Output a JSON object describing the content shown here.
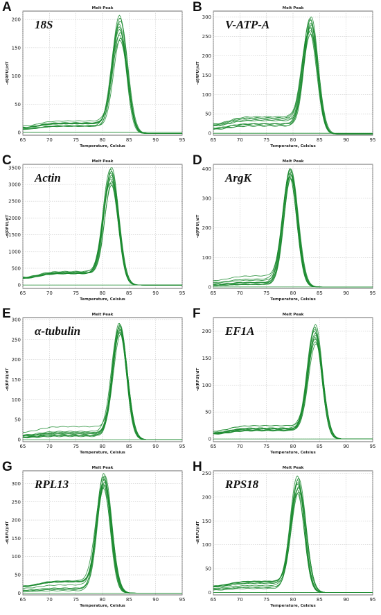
{
  "chart_data": [
    {
      "panel": "A",
      "gene": "18S",
      "type": "line",
      "title": "Melt Peak",
      "xlabel": "Temperature, Celsius",
      "ylabel": "-d(RFU)/dT",
      "xlim": [
        65,
        95
      ],
      "xticks": [
        65,
        70,
        75,
        80,
        85,
        90,
        95
      ],
      "ylim": [
        -5,
        215
      ],
      "yticks": [
        0,
        50,
        100,
        150,
        200
      ],
      "peak_temp": 83.3,
      "baseline": [
        10,
        24
      ],
      "peak_min": 163,
      "peak_max": 208,
      "end": -2,
      "curves": 10,
      "color": "#1a8a2e"
    },
    {
      "panel": "B",
      "gene": "V-ATP-A",
      "type": "line",
      "title": "Melt Peak",
      "xlabel": "Temperature, Celsius",
      "ylabel": "-d(RFU)/dT",
      "xlim": [
        65,
        95
      ],
      "xticks": [
        65,
        70,
        75,
        80,
        85,
        90,
        95
      ],
      "ylim": [
        -5,
        315
      ],
      "yticks": [
        0,
        50,
        100,
        150,
        200,
        250,
        300
      ],
      "peak_temp": 83.3,
      "baseline": [
        15,
        45
      ],
      "peak_min": 255,
      "peak_max": 300,
      "end": -2,
      "curves": 10,
      "color": "#1a8a2e"
    },
    {
      "panel": "C",
      "gene": "Actin",
      "type": "line",
      "title": "Melt Peak",
      "xlabel": "Temperature, Celsius",
      "ylabel": "-d(RFU)/dT",
      "xlim": [
        65,
        95
      ],
      "xticks": [
        65,
        70,
        75,
        80,
        85,
        90,
        95
      ],
      "ylim": [
        -100,
        3600
      ],
      "yticks": [
        0,
        500,
        1000,
        1500,
        2000,
        2500,
        3000,
        3500
      ],
      "peak_temp": 81.7,
      "baseline": [
        330,
        420
      ],
      "peak_min": 2950,
      "peak_max": 3480,
      "end": 0,
      "curves": 10,
      "color": "#1a8a2e"
    },
    {
      "panel": "D",
      "gene": "ArgK",
      "type": "line",
      "title": "Melt Peak",
      "xlabel": "Temperature, Celsius",
      "ylabel": "-d(RFU)/dT",
      "xlim": [
        65,
        95
      ],
      "xticks": [
        65,
        70,
        75,
        80,
        85,
        90,
        95
      ],
      "ylim": [
        -5,
        415
      ],
      "yticks": [
        0,
        100,
        200,
        300,
        400
      ],
      "peak_temp": 79.5,
      "baseline": [
        5,
        40
      ],
      "peak_min": 365,
      "peak_max": 400,
      "end": 0,
      "curves": 10,
      "color": "#1a8a2e"
    },
    {
      "panel": "E",
      "gene": "α-tubulin",
      "type": "line",
      "title": "Melt Peak",
      "xlabel": "Temperature, Celsius",
      "ylabel": "-d(RFU)/dT",
      "xlim": [
        65,
        95
      ],
      "xticks": [
        65,
        70,
        75,
        80,
        85,
        90,
        95
      ],
      "ylim": [
        -5,
        305
      ],
      "yticks": [
        0,
        50,
        100,
        150,
        200,
        250,
        300
      ],
      "peak_temp": 83.3,
      "baseline": [
        8,
        42
      ],
      "peak_min": 262,
      "peak_max": 290,
      "end": 0,
      "curves": 10,
      "color": "#1a8a2e"
    },
    {
      "panel": "F",
      "gene": "EF1A",
      "type": "line",
      "title": "Melt Peak",
      "xlabel": "Temperature, Celsius",
      "ylabel": "-d(RFU)/dT",
      "xlim": [
        65,
        95
      ],
      "xticks": [
        65,
        70,
        75,
        80,
        85,
        90,
        95
      ],
      "ylim": [
        -5,
        225
      ],
      "yticks": [
        0,
        50,
        100,
        150,
        200
      ],
      "peak_temp": 84.2,
      "baseline": [
        15,
        25
      ],
      "peak_min": 175,
      "peak_max": 210,
      "end": 0,
      "curves": 10,
      "color": "#1a8a2e"
    },
    {
      "panel": "G",
      "gene": "RPL13",
      "type": "line",
      "title": "Melt Peak",
      "xlabel": "Temperature, Celsius",
      "ylabel": "-d(RFU)/dT",
      "xlim": [
        65,
        95
      ],
      "xticks": [
        65,
        70,
        75,
        80,
        85,
        90,
        95
      ],
      "ylim": [
        -5,
        335
      ],
      "yticks": [
        0,
        50,
        100,
        150,
        200,
        250,
        300
      ],
      "peak_temp": 80.3,
      "baseline": [
        5,
        35
      ],
      "peak_min": 285,
      "peak_max": 325,
      "end": 0,
      "curves": 10,
      "color": "#1a8a2e"
    },
    {
      "panel": "H",
      "gene": "RPS18",
      "type": "line",
      "title": "Melt Peak",
      "xlabel": "Temperature, Celsius",
      "ylabel": "-d(RFU)/dT",
      "xlim": [
        65,
        95
      ],
      "xticks": [
        65,
        70,
        75,
        80,
        85,
        90,
        95
      ],
      "ylim": [
        -5,
        255
      ],
      "yticks": [
        0,
        50,
        100,
        150,
        200,
        250
      ],
      "peak_temp": 81.0,
      "baseline": [
        5,
        28
      ],
      "peak_min": 205,
      "peak_max": 242,
      "end": 0,
      "curves": 10,
      "color": "#1a8a2e"
    }
  ]
}
